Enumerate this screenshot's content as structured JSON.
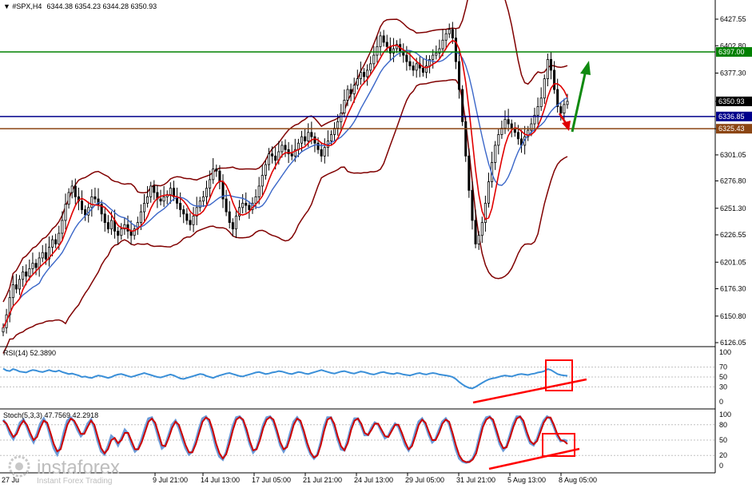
{
  "chart_data": {
    "type": "candlestick",
    "header": {
      "symbol": "#SPX,H4",
      "ohlc": "6344.38 6354.23 6344.28 6350.93"
    },
    "price_axis": {
      "ticks": [
        "6427.55",
        "6402.80",
        "6377.30",
        "6350.93",
        "6325.43",
        "6301.05",
        "6276.80",
        "6251.30",
        "6226.55",
        "6201.05",
        "6176.30",
        "6150.80",
        "6126.05"
      ],
      "range": [
        6126.05,
        6435.0
      ]
    },
    "x_axis": {
      "ticks": [
        "9 Jul 21:00",
        "14 Jul 13:00",
        "17 Jul 05:00",
        "21 Jul 21:00",
        "24 Jul 13:00",
        "29 Jul 05:00",
        "31 Jul 21:00",
        "5 Aug 13:00",
        "8 Aug 05:00"
      ],
      "first_partial": "27 Ju"
    },
    "levels": [
      {
        "label": "6397.00",
        "value": 6397.0,
        "color": "#008000"
      },
      {
        "label": "6336.85",
        "value": 6336.85,
        "color": "#00008b"
      },
      {
        "label": "6325.43",
        "value": 6325.43,
        "color": "#8b4513"
      }
    ],
    "current_price": {
      "label": "6350.93",
      "value": 6350.93
    },
    "closes": [
      6140,
      6152,
      6168,
      6180,
      6176,
      6185,
      6192,
      6188,
      6195,
      6200,
      6196,
      6205,
      6210,
      6204,
      6215,
      6222,
      6218,
      6228,
      6240,
      6255,
      6266,
      6272,
      6262,
      6258,
      6250,
      6245,
      6252,
      6262,
      6260,
      6255,
      6246,
      6238,
      6232,
      6240,
      6230,
      6226,
      6232,
      6236,
      6230,
      6226,
      6232,
      6238,
      6248,
      6256,
      6262,
      6272,
      6266,
      6260,
      6258,
      6262,
      6264,
      6270,
      6262,
      6256,
      6250,
      6246,
      6240,
      6236,
      6244,
      6252,
      6258,
      6262,
      6270,
      6278,
      6288,
      6286,
      6276,
      6260,
      6248,
      6238,
      6232,
      6244,
      6252,
      6256,
      6254,
      6250,
      6256,
      6262,
      6272,
      6282,
      6292,
      6302,
      6300,
      6296,
      6304,
      6310,
      6306,
      6302,
      6300,
      6306,
      6312,
      6318,
      6314,
      6322,
      6318,
      6312,
      6306,
      6300,
      6308,
      6314,
      6320,
      6326,
      6332,
      6340,
      6352,
      6362,
      6358,
      6366,
      6372,
      6378,
      6374,
      6380,
      6386,
      6394,
      6402,
      6412,
      6406,
      6402,
      6396,
      6400,
      6404,
      6398,
      6394,
      6388,
      6384,
      6380,
      6386,
      6382,
      6378,
      6384,
      6390,
      6394,
      6396,
      6400,
      6408,
      6414,
      6418,
      6410,
      6388,
      6362,
      6332,
      6300,
      6268,
      6240,
      6218,
      6226,
      6238,
      6256,
      6276,
      6294,
      6310,
      6320,
      6326,
      6334,
      6330,
      6326,
      6322,
      6316,
      6310,
      6318,
      6324,
      6330,
      6338,
      6346,
      6354,
      6372,
      6390,
      6380,
      6362,
      6346,
      6340,
      6348,
      6350.93
    ],
    "rsi": {
      "label": "RSI(14) 52.3890",
      "levels": [
        "100",
        "70",
        "50",
        "30",
        "0"
      ],
      "values": [
        67,
        63,
        62,
        66,
        64,
        61,
        60,
        59,
        62,
        64,
        63,
        61,
        60,
        62,
        64,
        62,
        61,
        63,
        60,
        58,
        56,
        57,
        55,
        53,
        50,
        51,
        49,
        48,
        51,
        53,
        52,
        50,
        48,
        50,
        53,
        55,
        56,
        54,
        52,
        50,
        52,
        54,
        56,
        58,
        56,
        54,
        52,
        50,
        49,
        51,
        53,
        55,
        53,
        50,
        47,
        46,
        48,
        50,
        52,
        54,
        56,
        55,
        52,
        50,
        48,
        51,
        53,
        55,
        57,
        58,
        56,
        54,
        52,
        51,
        53,
        55,
        57,
        59,
        60,
        58,
        56,
        57,
        59,
        60,
        62,
        61,
        59,
        57,
        56,
        58,
        60,
        59,
        57,
        56,
        58,
        60,
        62,
        64,
        62,
        60,
        58,
        57,
        59,
        61,
        62,
        60,
        58,
        57,
        59,
        61,
        60,
        58,
        56,
        55,
        57,
        59,
        60,
        58,
        57,
        56,
        58,
        57,
        55,
        54,
        53,
        55,
        57,
        58,
        56,
        55,
        57,
        58,
        57,
        55,
        54,
        53,
        52,
        50,
        46,
        40,
        35,
        31,
        28,
        27,
        30,
        34,
        38,
        42,
        45,
        47,
        48,
        50,
        52,
        53,
        52,
        51,
        53,
        55,
        56,
        55,
        54,
        56,
        57,
        59,
        60,
        62,
        66,
        64,
        60,
        56,
        54,
        53,
        52.39
      ]
    },
    "stoch": {
      "label": "Stoch(5,3,3) 47.7569 42.2918",
      "levels": [
        "100",
        "80",
        "50",
        "20",
        "0"
      ],
      "main": [
        90,
        80,
        62,
        52,
        66,
        84,
        90,
        76,
        58,
        46,
        62,
        82,
        92,
        80,
        56,
        34,
        22,
        38,
        66,
        88,
        94,
        86,
        70,
        58,
        66,
        82,
        90,
        74,
        48,
        28,
        22,
        38,
        58,
        52,
        40,
        54,
        70,
        62,
        42,
        28,
        34,
        52,
        74,
        92,
        94,
        78,
        54,
        34,
        40,
        60,
        80,
        88,
        74,
        52,
        34,
        22,
        28,
        48,
        72,
        92,
        96,
        86,
        62,
        36,
        18,
        12,
        26,
        52,
        78,
        94,
        96,
        88,
        66,
        42,
        26,
        34,
        56,
        80,
        94,
        96,
        86,
        64,
        40,
        28,
        40,
        64,
        86,
        94,
        84,
        62,
        38,
        22,
        14,
        22,
        46,
        76,
        94,
        94,
        76,
        52,
        32,
        30,
        50,
        76,
        92,
        92,
        78,
        60,
        60,
        74,
        84,
        80,
        66,
        54,
        58,
        72,
        82,
        76,
        58,
        40,
        30,
        42,
        66,
        86,
        92,
        80,
        60,
        46,
        52,
        70,
        86,
        92,
        82,
        58,
        32,
        14,
        8,
        6,
        8,
        14,
        30,
        58,
        82,
        94,
        96,
        86,
        64,
        42,
        30,
        38,
        60,
        82,
        96,
        96,
        82,
        60,
        44,
        40,
        52,
        72,
        88,
        96,
        92,
        76,
        58,
        48,
        50,
        47.76
      ],
      "signal": [
        88,
        82,
        68,
        56,
        62,
        78,
        88,
        80,
        64,
        50,
        56,
        74,
        88,
        84,
        64,
        42,
        28,
        32,
        56,
        80,
        92,
        88,
        76,
        62,
        62,
        76,
        88,
        80,
        56,
        34,
        24,
        32,
        50,
        54,
        44,
        50,
        64,
        64,
        48,
        32,
        32,
        46,
        66,
        86,
        92,
        84,
        62,
        40,
        38,
        54,
        74,
        86,
        80,
        60,
        40,
        26,
        26,
        42,
        64,
        86,
        94,
        90,
        70,
        44,
        24,
        14,
        22,
        44,
        70,
        90,
        95,
        90,
        72,
        48,
        30,
        32,
        50,
        74,
        90,
        95,
        90,
        70,
        46,
        32,
        36,
        56,
        80,
        92,
        88,
        68,
        44,
        26,
        16,
        20,
        40,
        68,
        90,
        94,
        82,
        58,
        38,
        30,
        44,
        70,
        88,
        92,
        82,
        64,
        60,
        70,
        82,
        82,
        70,
        58,
        56,
        68,
        80,
        80,
        64,
        46,
        32,
        38,
        58,
        80,
        90,
        84,
        66,
        50,
        50,
        64,
        82,
        90,
        86,
        64,
        40,
        20,
        10,
        7,
        7,
        12,
        24,
        50,
        76,
        90,
        95,
        90,
        70,
        48,
        34,
        36,
        54,
        76,
        92,
        96,
        88,
        66,
        48,
        42,
        48,
        66,
        84,
        94,
        94,
        80,
        62,
        50,
        48,
        42.29
      ]
    }
  },
  "logo": {
    "brand": "instaforex",
    "tagline": "Instant Forex Trading"
  },
  "colors": {
    "candle": "#000000",
    "bands": "#800000",
    "ma_fast": "#e00000",
    "ma_slow": "#3a66c8",
    "rsi_line": "#3a8fd8",
    "stoch_main": "#6b9bd8",
    "stoch_signal": "#cc0000",
    "annot": "#ff0000",
    "arrow_up": "#108a10",
    "arrow_down": "#e00000"
  }
}
